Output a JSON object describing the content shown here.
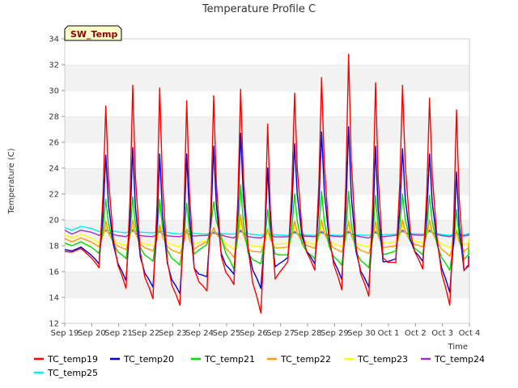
{
  "chart_data": {
    "type": "line",
    "title": "Temperature Profile C",
    "xlabel": "Time",
    "ylabel": "Temperature (C)",
    "badge": "SW_Temp",
    "ylim": [
      12,
      34
    ],
    "yticks": [
      12,
      14,
      16,
      18,
      20,
      22,
      24,
      26,
      28,
      30,
      32,
      34
    ],
    "x_ticks": [
      "Sep 19",
      "Sep 20",
      "Sep 21",
      "Sep 22",
      "Sep 23",
      "Sep 24",
      "Sep 25",
      "Sep 26",
      "Sep 27",
      "Sep 28",
      "Sep 29",
      "Sep 30",
      "Oct 1",
      "Oct 2",
      "Oct 3",
      "Oct 4"
    ],
    "x_unit": "days",
    "x_start": "2023-09-19",
    "x_end": "2023-10-04",
    "grid": "horizontal bands",
    "legend_position": "bottom",
    "daily_dates": [
      "Sep 19",
      "Sep 20",
      "Sep 21",
      "Sep 22",
      "Sep 23",
      "Sep 24",
      "Sep 25",
      "Sep 26",
      "Sep 27",
      "Sep 28",
      "Sep 29",
      "Sep 30",
      "Oct 1",
      "Oct 2",
      "Oct 3"
    ],
    "series": [
      {
        "name": "TC_temp19",
        "color": "#ff0000",
        "daily_max": [
          null,
          28.8,
          30.4,
          30.2,
          29.2,
          29.6,
          30.1,
          27.4,
          29.8,
          31.0,
          32.8,
          30.6,
          30.4,
          29.4,
          28.5
        ],
        "daily_min": [
          17.5,
          16.3,
          14.7,
          13.9,
          13.4,
          14.5,
          15.0,
          12.8,
          16.8,
          16.1,
          14.6,
          14.1,
          16.7,
          16.2,
          13.4
        ],
        "last": 17.0
      },
      {
        "name": "TC_temp20",
        "color": "#0000cc",
        "daily_max": [
          null,
          25.0,
          25.6,
          25.1,
          25.1,
          25.7,
          26.7,
          24.0,
          25.9,
          26.8,
          27.2,
          25.7,
          25.5,
          25.1,
          23.7
        ],
        "daily_min": [
          17.6,
          16.6,
          15.3,
          14.8,
          14.3,
          15.6,
          15.8,
          14.7,
          17.1,
          16.6,
          15.4,
          14.8,
          17.0,
          16.8,
          14.4
        ],
        "last": 17.2
      },
      {
        "name": "TC_temp21",
        "color": "#00dd00",
        "daily_max": [
          null,
          21.6,
          21.8,
          21.6,
          21.3,
          21.4,
          22.7,
          20.8,
          22.0,
          22.2,
          22.2,
          21.9,
          22.0,
          21.9,
          20.8
        ],
        "daily_min": [
          18.0,
          17.4,
          17.0,
          16.8,
          16.5,
          18.1,
          16.2,
          16.6,
          17.3,
          17.0,
          16.5,
          16.3,
          17.6,
          17.3,
          16.1
        ],
        "last": 17.8
      },
      {
        "name": "TC_temp22",
        "color": "#ff9900",
        "daily_max": [
          null,
          19.9,
          20.0,
          19.6,
          19.3,
          19.4,
          20.4,
          19.3,
          19.9,
          20.0,
          19.9,
          19.9,
          20.0,
          20.0,
          19.2
        ],
        "daily_min": [
          18.3,
          17.9,
          17.7,
          17.6,
          17.4,
          18.3,
          17.1,
          17.5,
          17.9,
          17.8,
          17.5,
          17.4,
          18.0,
          17.9,
          17.2
        ],
        "last": 18.2
      },
      {
        "name": "TC_temp23",
        "color": "#ffff00",
        "daily_max": [
          null,
          19.5,
          19.6,
          19.4,
          19.2,
          19.3,
          19.8,
          19.1,
          19.5,
          19.6,
          19.6,
          19.5,
          19.6,
          19.6,
          19.1
        ],
        "daily_min": [
          18.6,
          18.2,
          18.0,
          18.0,
          17.9,
          18.4,
          17.7,
          17.9,
          18.2,
          18.1,
          17.9,
          17.9,
          18.3,
          18.2,
          17.8
        ],
        "last": 18.5
      },
      {
        "name": "TC_temp24",
        "color": "#9933cc",
        "daily_max": [
          null,
          19.2,
          19.2,
          19.1,
          19.0,
          19.0,
          19.2,
          19.0,
          19.1,
          19.1,
          19.1,
          19.1,
          19.2,
          19.2,
          19.0
        ],
        "daily_min": [
          18.9,
          18.8,
          18.7,
          18.7,
          18.7,
          18.8,
          18.6,
          18.6,
          18.7,
          18.7,
          18.7,
          18.6,
          18.8,
          18.8,
          18.7
        ],
        "last": 18.9
      },
      {
        "name": "TC_temp25",
        "color": "#00eeee",
        "daily_max": [
          null,
          19.3,
          19.3,
          19.2,
          19.2,
          19.1,
          19.1,
          19.0,
          19.0,
          19.0,
          19.0,
          19.0,
          19.1,
          19.1,
          19.0
        ],
        "daily_min": [
          19.2,
          19.1,
          19.0,
          19.0,
          18.9,
          18.9,
          18.9,
          18.8,
          18.8,
          18.8,
          18.8,
          18.8,
          18.9,
          18.9,
          18.8
        ],
        "last": 19.0
      }
    ]
  }
}
